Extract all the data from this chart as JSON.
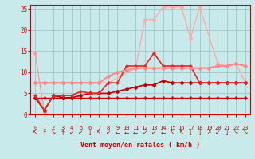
{
  "background_color": "#c8eaea",
  "grid_color": "#a0c8c8",
  "xlabel": "Vent moyen/en rafales ( km/h )",
  "xlabel_color": "#cc0000",
  "tick_color": "#cc0000",
  "xlim": [
    -0.5,
    23.5
  ],
  "ylim": [
    0,
    26
  ],
  "yticks": [
    0,
    5,
    10,
    15,
    20,
    25
  ],
  "xticks": [
    0,
    1,
    2,
    3,
    4,
    5,
    6,
    7,
    8,
    9,
    10,
    11,
    12,
    13,
    14,
    15,
    16,
    17,
    18,
    19,
    20,
    21,
    22,
    23
  ],
  "series": [
    {
      "x": [
        0,
        1
      ],
      "y": [
        14.5,
        0.5
      ],
      "color": "#ff9999",
      "linewidth": 1.0,
      "marker": "D",
      "markersize": 2.5
    },
    {
      "x": [
        0,
        1,
        2,
        3,
        4,
        5,
        6,
        7,
        8,
        11,
        12,
        13,
        14,
        15,
        16,
        17,
        18,
        20,
        21,
        22,
        23
      ],
      "y": [
        7.5,
        7.5,
        7.5,
        7.5,
        7.5,
        7.5,
        7.5,
        7.5,
        7.5,
        11,
        22.5,
        22.5,
        25.5,
        25.5,
        25.5,
        18,
        25.5,
        12,
        11.5,
        12,
        7.5
      ],
      "color": "#ffaaaa",
      "linewidth": 1.0,
      "marker": "D",
      "markersize": 2.5
    },
    {
      "x": [
        0,
        1,
        2,
        3,
        4,
        5,
        6,
        7,
        8,
        9,
        10,
        11,
        12,
        13,
        14,
        15,
        16,
        17,
        18,
        19,
        20,
        21,
        22,
        23
      ],
      "y": [
        4,
        4,
        4,
        4,
        4,
        4,
        4,
        4,
        4,
        4,
        4,
        4,
        4,
        4,
        4,
        4,
        4,
        4,
        4,
        4,
        4,
        4,
        4,
        4
      ],
      "color": "#cc0000",
      "linewidth": 1.0,
      "marker": "P",
      "markersize": 2.5
    },
    {
      "x": [
        0,
        1,
        2,
        3,
        4,
        5,
        6,
        7,
        8,
        9,
        10,
        11,
        12,
        13,
        14,
        15,
        16,
        17,
        18,
        19,
        20,
        21,
        22,
        23
      ],
      "y": [
        4,
        1,
        4.5,
        4,
        4,
        4.5,
        5,
        5,
        5,
        5.5,
        6,
        6.5,
        7,
        7,
        8,
        7.5,
        7.5,
        7.5,
        7.5,
        7.5,
        7.5,
        7.5,
        7.5,
        7.5
      ],
      "color": "#bb0000",
      "linewidth": 1.2,
      "marker": "D",
      "markersize": 2.5
    },
    {
      "x": [
        0,
        1,
        2,
        3,
        4,
        5,
        6,
        7,
        8,
        9,
        10,
        11,
        12,
        13,
        14,
        15,
        16,
        17,
        18,
        19,
        20,
        21,
        22,
        23
      ],
      "y": [
        4.5,
        1,
        4.5,
        4.5,
        4.5,
        5.5,
        5,
        5,
        7.5,
        7.5,
        11.5,
        11.5,
        11.5,
        14.5,
        11.5,
        11.5,
        11.5,
        11.5,
        7.5,
        7.5,
        7.5,
        7.5,
        7.5,
        7.5
      ],
      "color": "#ee2222",
      "linewidth": 1.2,
      "marker": "P",
      "markersize": 2.5
    },
    {
      "x": [
        0,
        1,
        2,
        3,
        4,
        5,
        6,
        7,
        8,
        9,
        10,
        11,
        12,
        13,
        14,
        15,
        16,
        17,
        18,
        19,
        20,
        21,
        22,
        23
      ],
      "y": [
        7.5,
        7.5,
        7.5,
        7.5,
        7.5,
        7.5,
        7.5,
        7.5,
        9,
        10,
        10.5,
        11,
        11,
        11,
        11,
        11,
        11,
        11,
        11,
        11,
        11.5,
        11.5,
        12,
        11.5
      ],
      "color": "#ff8888",
      "linewidth": 1.5,
      "marker": "D",
      "markersize": 2.5
    }
  ],
  "wind_arrows": [
    "↖",
    "↑",
    "↘",
    "↑",
    "↙",
    "↙",
    "↓",
    "↖",
    "↙",
    "←",
    "←",
    "←",
    "↙",
    "↙",
    "←",
    "↖",
    "↖",
    "↓",
    "↓",
    "↗",
    "↙",
    "↓",
    "↘",
    "↘"
  ]
}
